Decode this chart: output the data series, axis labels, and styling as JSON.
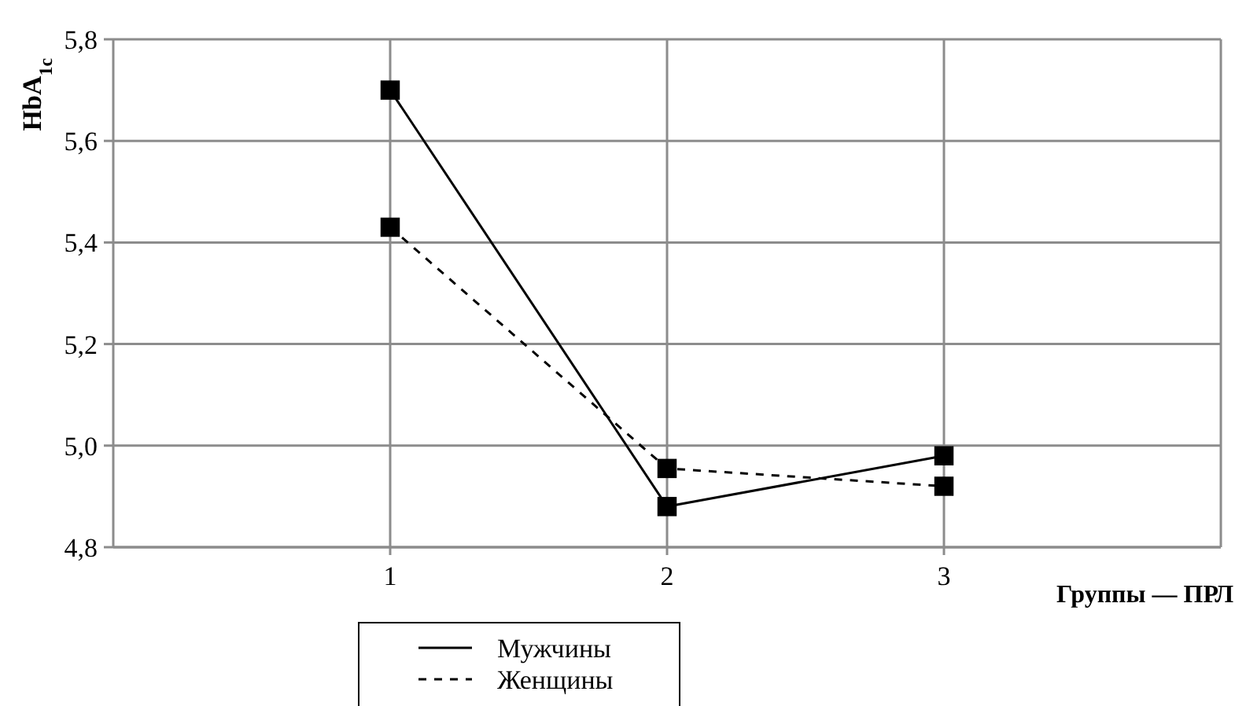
{
  "chart_data": {
    "type": "line",
    "xlabel": "Группы — ПРЛ",
    "ylabel": "HbA$_{1c}$",
    "x": [
      1,
      2,
      3
    ],
    "xlim": [
      0,
      4
    ],
    "xticks": [
      1,
      2,
      3
    ],
    "ylim": [
      4.8,
      5.8
    ],
    "yticks": [
      {
        "value": 4.8,
        "label": "4,8"
      },
      {
        "value": 5.0,
        "label": "5,0"
      },
      {
        "value": 5.2,
        "label": "5,2"
      },
      {
        "value": 5.4,
        "label": "5,4"
      },
      {
        "value": 5.6,
        "label": "5,6"
      },
      {
        "value": 5.8,
        "label": "5,8"
      }
    ],
    "series": [
      {
        "name": "Мужчины",
        "color": "#000000",
        "line_style": "solid",
        "values": [
          5.7,
          4.88,
          4.98
        ]
      },
      {
        "name": "Женщины",
        "color": "#000000",
        "line_style": "dashed",
        "values": [
          5.43,
          4.955,
          4.92
        ]
      }
    ],
    "marker": "square",
    "grid": true,
    "legend": "bottom"
  }
}
